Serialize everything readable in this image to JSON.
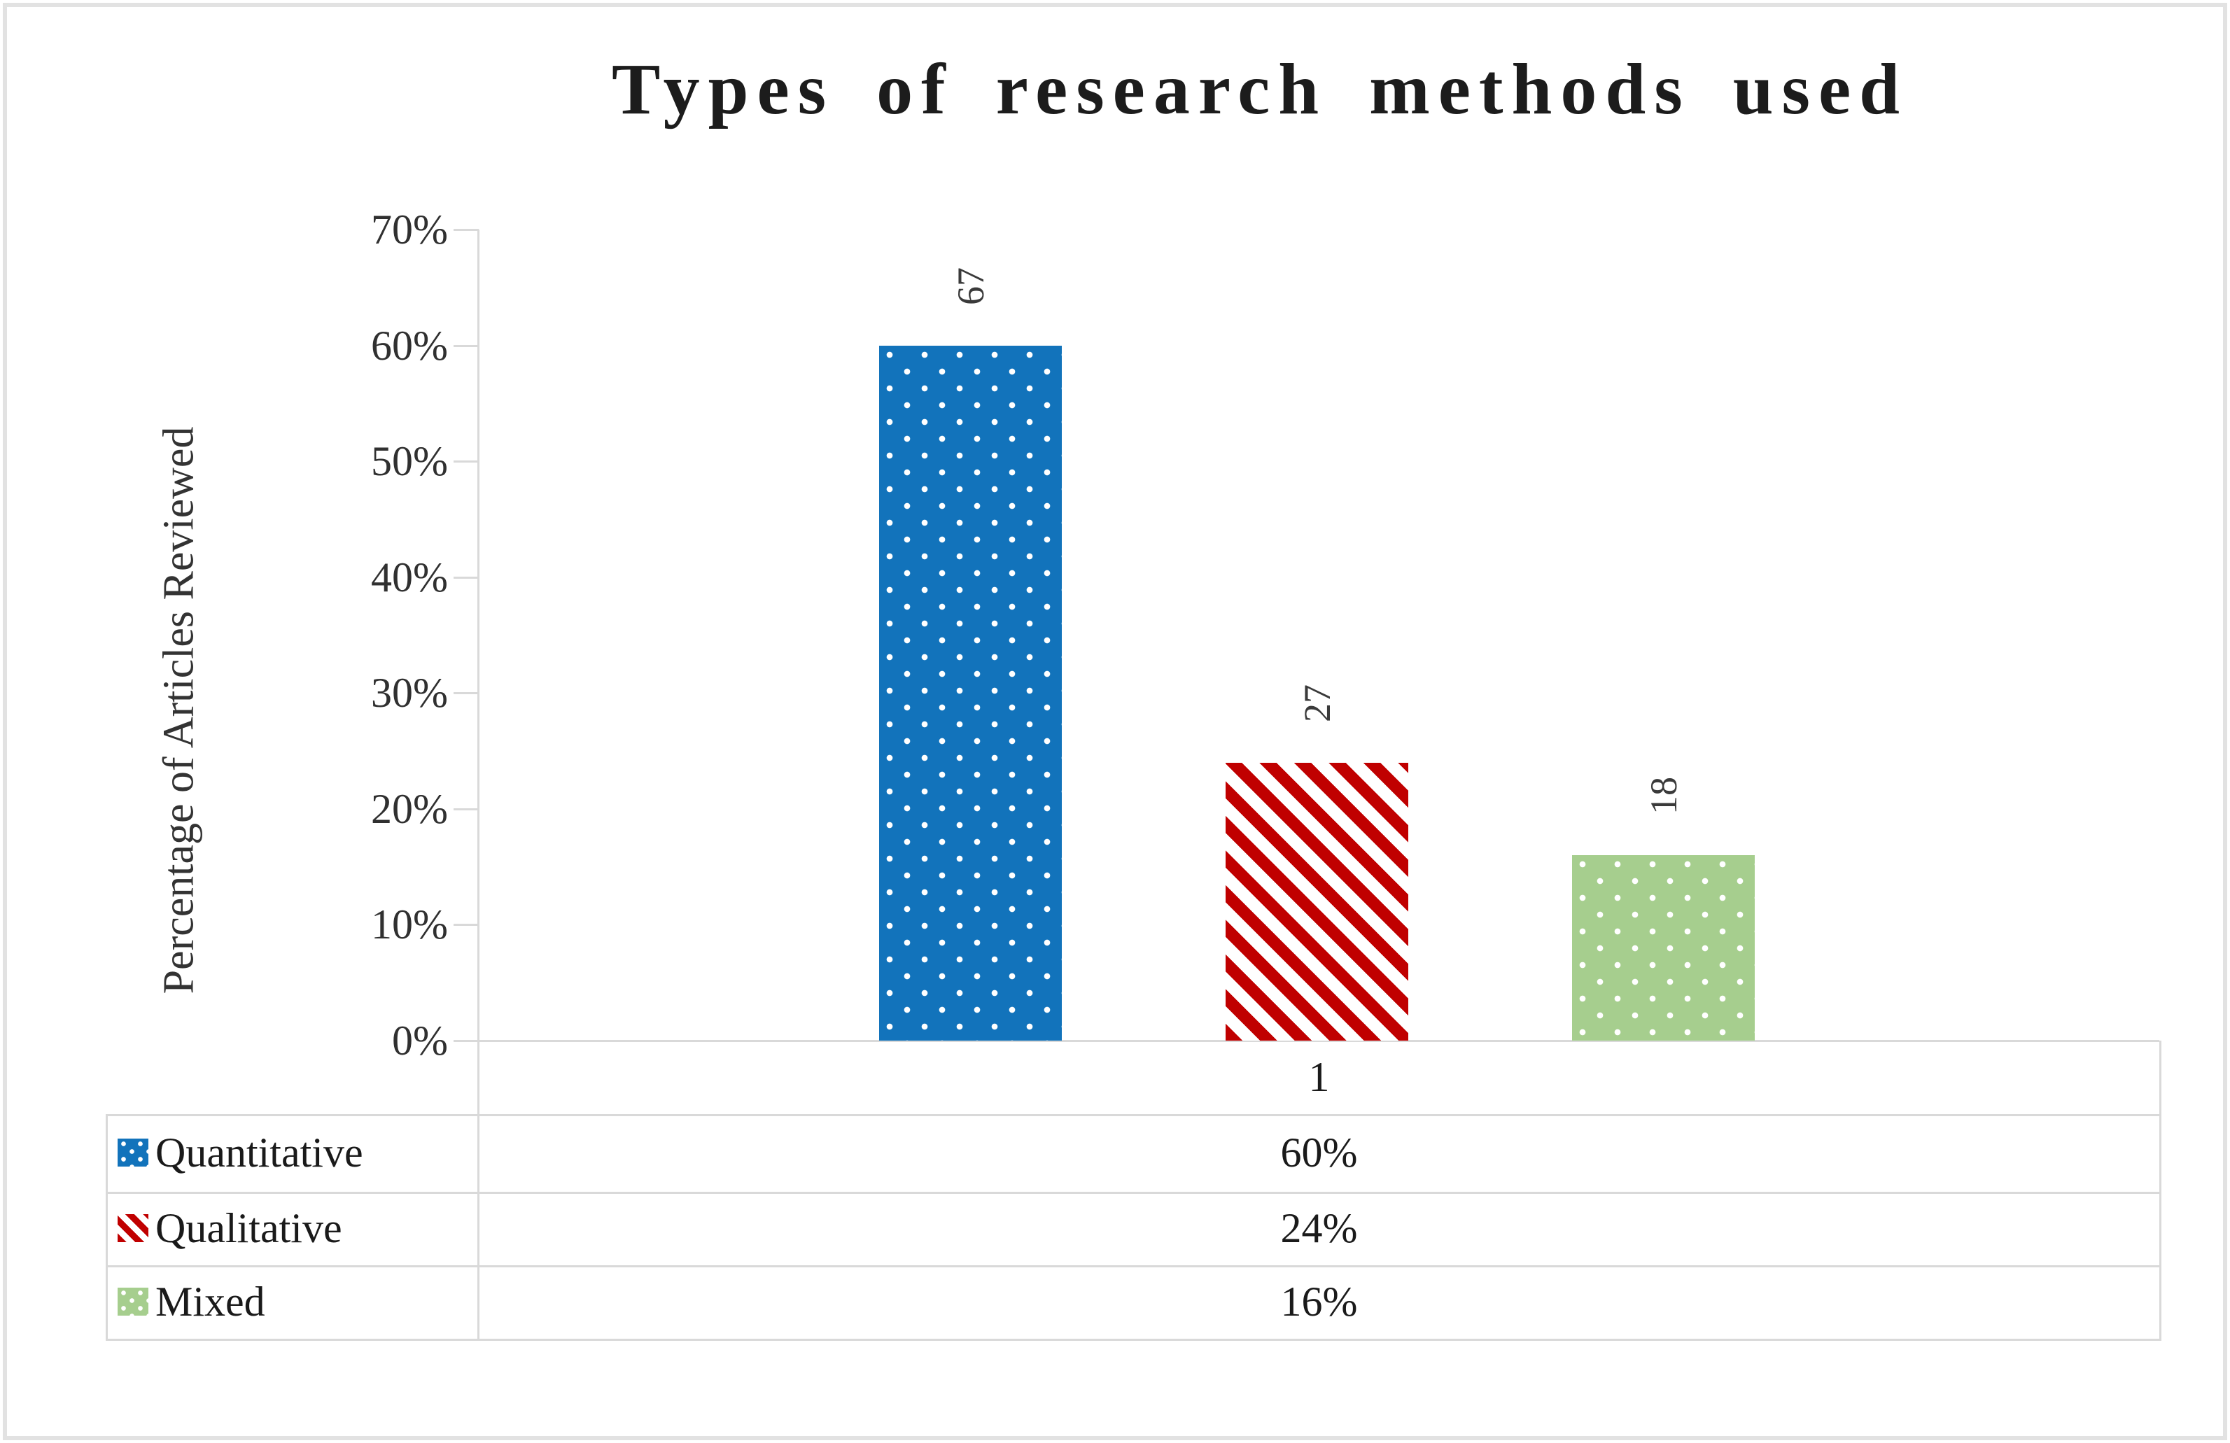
{
  "title": "Types of research methods used",
  "y_axis": {
    "title": "Percentage of Articles Reviewed",
    "tick_labels": [
      "70%",
      "60%",
      "50%",
      "40%",
      "30%",
      "20%",
      "10%",
      "0%"
    ]
  },
  "table": {
    "category_label": "1",
    "rows": [
      {
        "label": "Quantitative",
        "value": "60%"
      },
      {
        "label": "Qualitative",
        "value": "24%"
      },
      {
        "label": "Mixed",
        "value": "16%"
      }
    ]
  },
  "chart_data": {
    "type": "bar",
    "title": "Types of research methods used",
    "categories": [
      "1"
    ],
    "series": [
      {
        "name": "Quantitative",
        "value_percent": 60,
        "count_label": "67",
        "color": "#1273BB",
        "pattern": "dots"
      },
      {
        "name": "Qualitative",
        "value_percent": 24,
        "count_label": "27",
        "color": "#C00000",
        "pattern": "diagonal-stripes"
      },
      {
        "name": "Mixed",
        "value_percent": 16,
        "count_label": "18",
        "color": "#A6CE8E",
        "pattern": "dots"
      }
    ],
    "xlabel": "",
    "ylabel": "Percentage of Articles Reviewed",
    "ylim": [
      0,
      70
    ],
    "y_tick_step": 10,
    "grid": "off",
    "legend_position": "left-of-data-table",
    "data_label_rotation_deg": -90,
    "line_color": "#D9D9D9"
  }
}
